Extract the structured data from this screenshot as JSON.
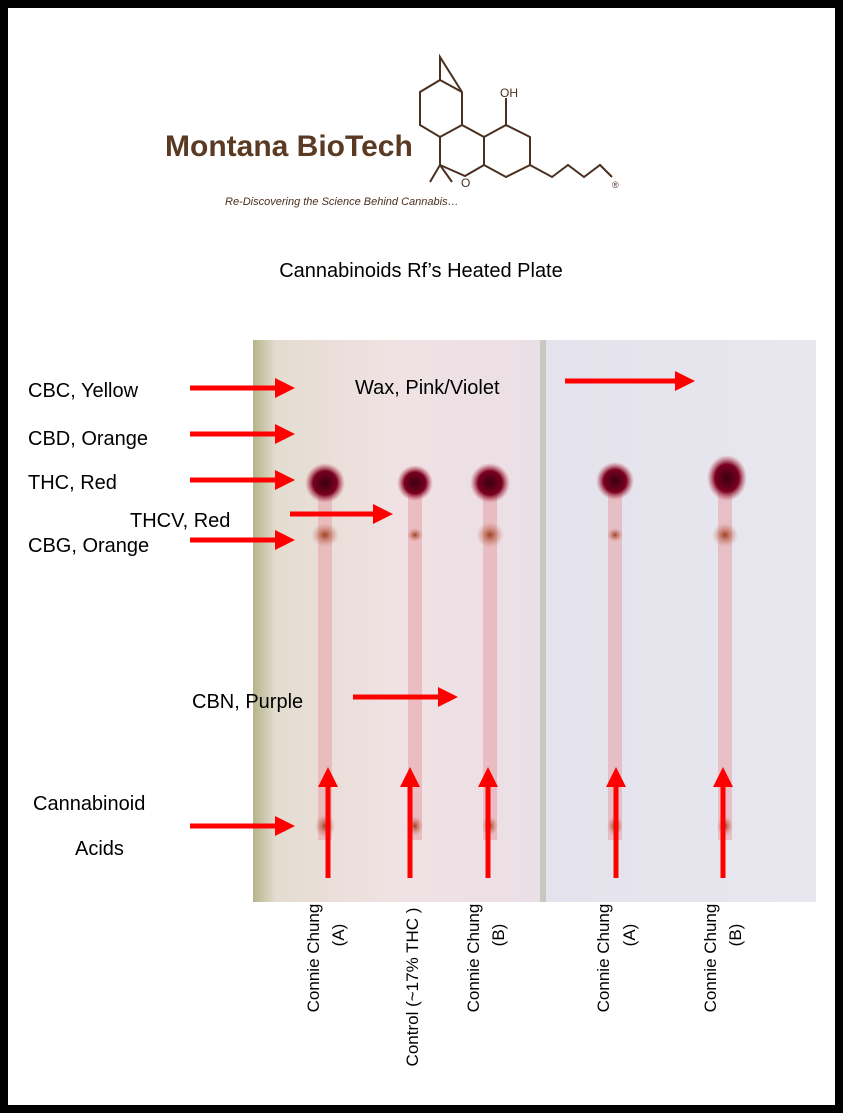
{
  "logo": {
    "name": "Montana BioTech",
    "tagline": "Re-Discovering the Science Behind Cannabis…",
    "oh": "OH",
    "o": "O",
    "registered": "®"
  },
  "title": "Cannabinoids Rf’s Heated Plate",
  "labels": [
    "CBC, Yellow",
    "CBD, Orange",
    "THC, Red",
    "THCV, Red",
    "CBG, Orange",
    "CBN, Purple",
    "Wax, Pink/Violet",
    "Cannabinoid",
    "Acids"
  ],
  "lanes": [
    [
      "Connie Chung",
      "(A)"
    ],
    [
      "Control (~17% THC )"
    ],
    [
      "Connie Chung",
      "(B)"
    ],
    [
      "Connie Chung",
      "(A)"
    ],
    [
      "Connie Chung",
      "(B)"
    ]
  ]
}
